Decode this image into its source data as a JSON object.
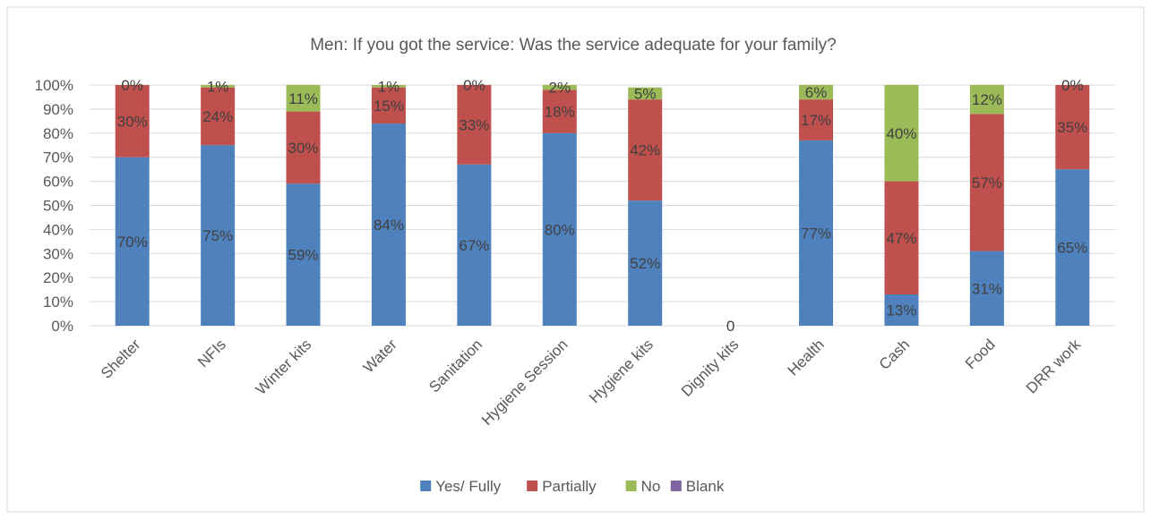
{
  "chart_data": {
    "type": "bar",
    "stacked": true,
    "title": "Men: If you got the service: Was the service adequate for your family?",
    "categories": [
      "Shelter",
      "NFIs",
      "Winter kits",
      "Water",
      "Sanitation",
      "Hygiene Session",
      "Hygiene kits",
      "Dignity kits",
      "Health",
      "Cash",
      "Food",
      "DRR work"
    ],
    "series": [
      {
        "name": "Yes/ Fully",
        "color": "#4f81bd",
        "values": [
          70,
          75,
          59,
          84,
          67,
          80,
          52,
          0,
          77,
          13,
          31,
          65
        ],
        "labels": [
          "70%",
          "75%",
          "59%",
          "84%",
          "67%",
          "80%",
          "52%",
          "",
          "77%",
          "13%",
          "31%",
          "65%"
        ]
      },
      {
        "name": "Partially",
        "color": "#c0504d",
        "values": [
          30,
          24,
          30,
          15,
          33,
          18,
          42,
          0,
          17,
          47,
          57,
          35
        ],
        "labels": [
          "30%",
          "24%",
          "30%",
          "15%",
          "33%",
          "18%",
          "42%",
          "",
          "17%",
          "47%",
          "57%",
          "35%"
        ]
      },
      {
        "name": "No",
        "color": "#9bbb59",
        "values": [
          0,
          1,
          11,
          1,
          0,
          2,
          5,
          0,
          6,
          40,
          12,
          0
        ],
        "labels": [
          "0%",
          "1%",
          "11%",
          "1%",
          "0%",
          "2%",
          "5%",
          "",
          "6%",
          "40%",
          "12%",
          "0%"
        ]
      },
      {
        "name": "Blank",
        "color": "#8064a2",
        "values": [
          0,
          0,
          0,
          0,
          0,
          0,
          0,
          0,
          0,
          0,
          0,
          0
        ],
        "labels": [
          "",
          "",
          "",
          "",
          "",
          "",
          "",
          "",
          "",
          "",
          "",
          ""
        ]
      }
    ],
    "special_labels": [
      {
        "category": "Dignity kits",
        "text": "0"
      }
    ],
    "yticks": [
      "0%",
      "10%",
      "20%",
      "30%",
      "40%",
      "50%",
      "60%",
      "70%",
      "80%",
      "90%",
      "100%"
    ],
    "ylim": [
      0,
      100
    ],
    "grid": true,
    "legend_position": "bottom"
  }
}
